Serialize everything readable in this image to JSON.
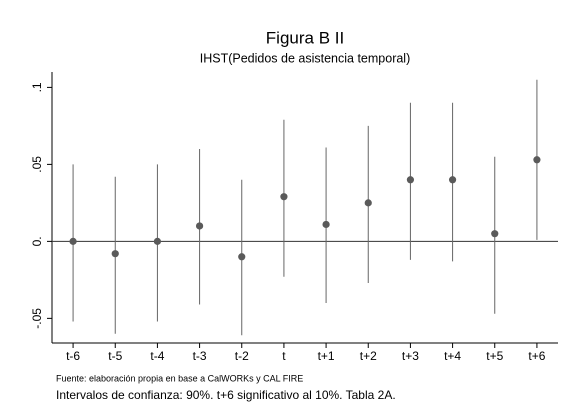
{
  "chart_data": {
    "type": "coefplot",
    "title": "Figura B II",
    "subtitle": "IHST(Pedidos de asistencia temporal)",
    "categories": [
      "t-6",
      "t-5",
      "t-4",
      "t-3",
      "t-2",
      "t",
      "t+1",
      "t+2",
      "t+3",
      "t+4",
      "t+5",
      "t+6"
    ],
    "values": [
      0,
      -0.008,
      0,
      0.01,
      -0.01,
      0.029,
      0.011,
      0.025,
      0.04,
      0.04,
      0.005,
      0.053
    ],
    "lower": [
      -0.052,
      -0.06,
      -0.052,
      -0.041,
      -0.061,
      -0.023,
      -0.04,
      -0.027,
      -0.012,
      -0.013,
      -0.047,
      0.001
    ],
    "upper": [
      0.05,
      0.042,
      0.05,
      0.06,
      0.04,
      0.079,
      0.061,
      0.075,
      0.09,
      0.09,
      0.055,
      0.105
    ],
    "color": "#5a5a5a",
    "ylim": [
      -0.066,
      0.11
    ],
    "yticks": [
      {
        "value": -0.05,
        "label": "-.05"
      },
      {
        "value": 0,
        "label": "0."
      },
      {
        "value": 0.05,
        "label": ".05"
      },
      {
        "value": 0.1,
        "label": ".1"
      }
    ],
    "hline": 0,
    "notes": [
      "Fuente: elaboración propia en base a CalWORKs y CAL FIRE",
      "Intervalos de confianza: 90%. t+6 significativo al 10%. Tabla 2A."
    ]
  }
}
